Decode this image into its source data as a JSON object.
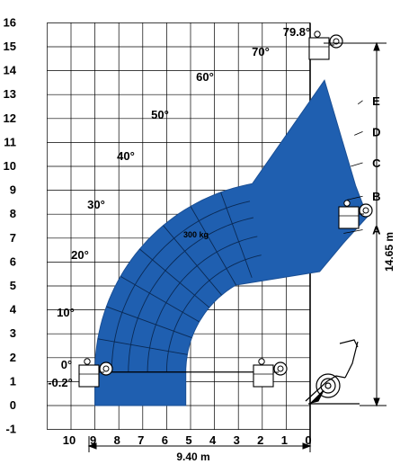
{
  "chart_data": {
    "type": "diagram",
    "title": "",
    "x_axis": {
      "ticks": [
        "10",
        "9",
        "8",
        "7",
        "6",
        "5",
        "4",
        "3",
        "2",
        "1",
        "0"
      ],
      "range": [
        10,
        0
      ]
    },
    "y_axis": {
      "ticks": [
        "-1",
        "0",
        "1",
        "2",
        "3",
        "4",
        "5",
        "6",
        "7",
        "8",
        "9",
        "10",
        "11",
        "12",
        "13",
        "14",
        "15",
        "16"
      ],
      "range": [
        -1,
        16
      ]
    },
    "angles": [
      {
        "label": "79.8°",
        "deg": 79.8
      },
      {
        "label": "70°",
        "deg": 70
      },
      {
        "label": "60°",
        "deg": 60
      },
      {
        "label": "50°",
        "deg": 50
      },
      {
        "label": "40°",
        "deg": 40
      },
      {
        "label": "30°",
        "deg": 30
      },
      {
        "label": "20°",
        "deg": 20
      },
      {
        "label": "10°",
        "deg": 10
      },
      {
        "label": "0°",
        "deg": 0
      },
      {
        "label": "-0.2°",
        "deg": -0.2
      }
    ],
    "zones": [
      "A",
      "B",
      "C",
      "D",
      "E"
    ],
    "load_label": "300 kg",
    "max_height": "14.65 m",
    "max_reach": "9.40 m",
    "fill_color": "#1f5fb0"
  }
}
